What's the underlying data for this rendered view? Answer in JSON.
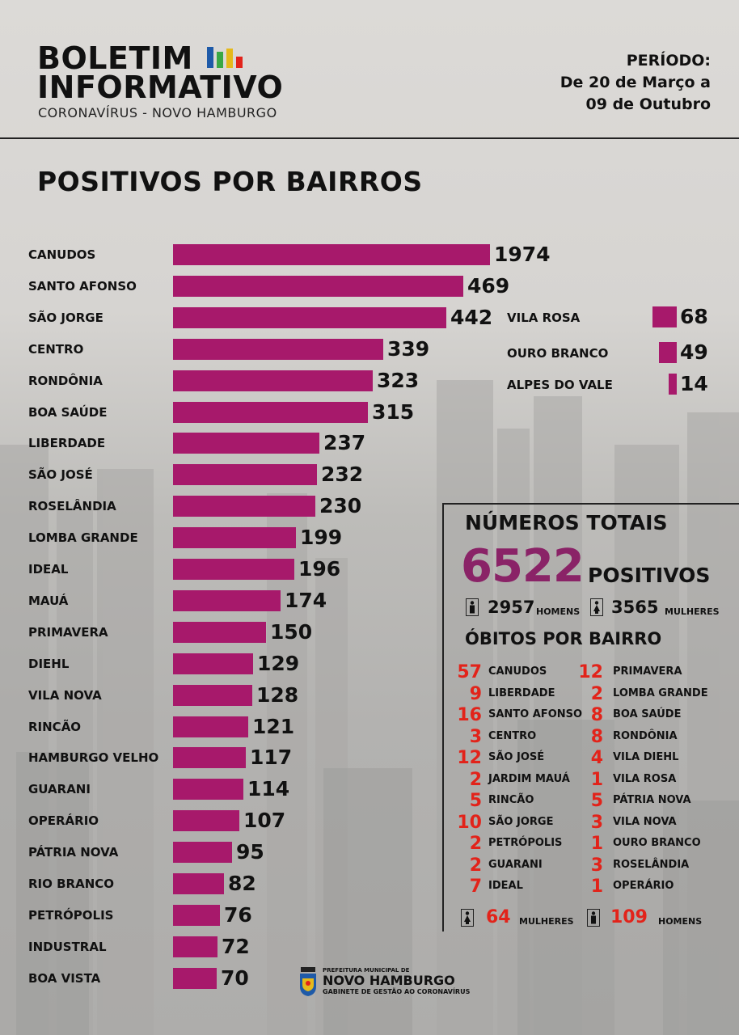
{
  "header": {
    "brand_line1": "BOLETIM",
    "brand_line2": "INFORMATIVO",
    "brand_sub": "CORONAVÍRUS - NOVO HAMBURGO",
    "period_label": "PERÍODO:",
    "period_line1": "De 20 de Março a",
    "period_line2": "09 de Outubro",
    "icon_colors": [
      "#1e5aa8",
      "#3aa845",
      "#e5b91b",
      "#e2231a"
    ]
  },
  "section_title": "POSITIVOS POR BAIRROS",
  "chart_data": {
    "type": "bar",
    "orientation": "horizontal",
    "title": "POSITIVOS POR BAIRROS",
    "bar_color": "#a7196b",
    "categories": [
      "CANUDOS",
      "SANTO AFONSO",
      "SÃO JORGE",
      "CENTRO",
      "RONDÔNIA",
      "BOA SAÚDE",
      "LIBERDADE",
      "SÃO JOSÉ",
      "ROSELÂNDIA",
      "LOMBA GRANDE",
      "IDEAL",
      "MAUÁ",
      "PRIMAVERA",
      "DIEHL",
      "VILA NOVA",
      "RINCÃO",
      "HAMBURGO VELHO",
      "GUARANI",
      "OPERÁRIO",
      "PÁTRIA NOVA",
      "RIO BRANCO",
      "PETRÓPOLIS",
      "INDUSTRAL",
      "BOA VISTA"
    ],
    "values": [
      1974,
      469,
      442,
      339,
      323,
      315,
      237,
      232,
      230,
      199,
      196,
      174,
      150,
      129,
      128,
      121,
      117,
      114,
      107,
      95,
      82,
      76,
      72,
      70
    ],
    "secondary": {
      "categories": [
        "VILA ROSA",
        "OURO BRANCO",
        "ALPES DO VALE"
      ],
      "values": [
        68,
        49,
        14
      ]
    }
  },
  "totals": {
    "title": "NÚMEROS TOTAIS",
    "positivos_total": "6522",
    "positivos_label": "POSITIVOS",
    "homens_value": "2957",
    "homens_label": "HOMENS",
    "mulheres_value": "3565",
    "mulheres_label": "MULHERES"
  },
  "obitos": {
    "title": "ÓBITOS POR BAIRRO",
    "left": [
      {
        "value": "57",
        "name": "CANUDOS"
      },
      {
        "value": "9",
        "name": "LIBERDADE"
      },
      {
        "value": "16",
        "name": "SANTO AFONSO"
      },
      {
        "value": "3",
        "name": "CENTRO"
      },
      {
        "value": "12",
        "name": "SÃO JOSÉ"
      },
      {
        "value": "2",
        "name": "JARDIM MAUÁ"
      },
      {
        "value": "5",
        "name": "RINCÃO"
      },
      {
        "value": "10",
        "name": "SÃO JORGE"
      },
      {
        "value": "2",
        "name": "PETRÓPOLIS"
      },
      {
        "value": "2",
        "name": "GUARANI"
      },
      {
        "value": "7",
        "name": "IDEAL"
      }
    ],
    "right": [
      {
        "value": "12",
        "name": "PRIMAVERA"
      },
      {
        "value": "2",
        "name": "LOMBA GRANDE"
      },
      {
        "value": "8",
        "name": "BOA SAÚDE"
      },
      {
        "value": "8",
        "name": "RONDÔNIA"
      },
      {
        "value": "4",
        "name": "VILA DIEHL"
      },
      {
        "value": "1",
        "name": "VILA ROSA"
      },
      {
        "value": "5",
        "name": "PÁTRIA NOVA"
      },
      {
        "value": "3",
        "name": "VILA NOVA"
      },
      {
        "value": "1",
        "name": "OURO BRANCO"
      },
      {
        "value": "3",
        "name": "ROSELÂNDIA"
      },
      {
        "value": "1",
        "name": "OPERÁRIO"
      }
    ],
    "mulheres_value": "64",
    "mulheres_label": "MULHERES",
    "homens_value": "109",
    "homens_label": "HOMENS"
  },
  "footer": {
    "small": "PREFEITURA MUNICIPAL DE",
    "main": "NOVO HAMBURGO",
    "sub": "GABINETE DE GESTÃO AO CORONAVÍRUS"
  }
}
